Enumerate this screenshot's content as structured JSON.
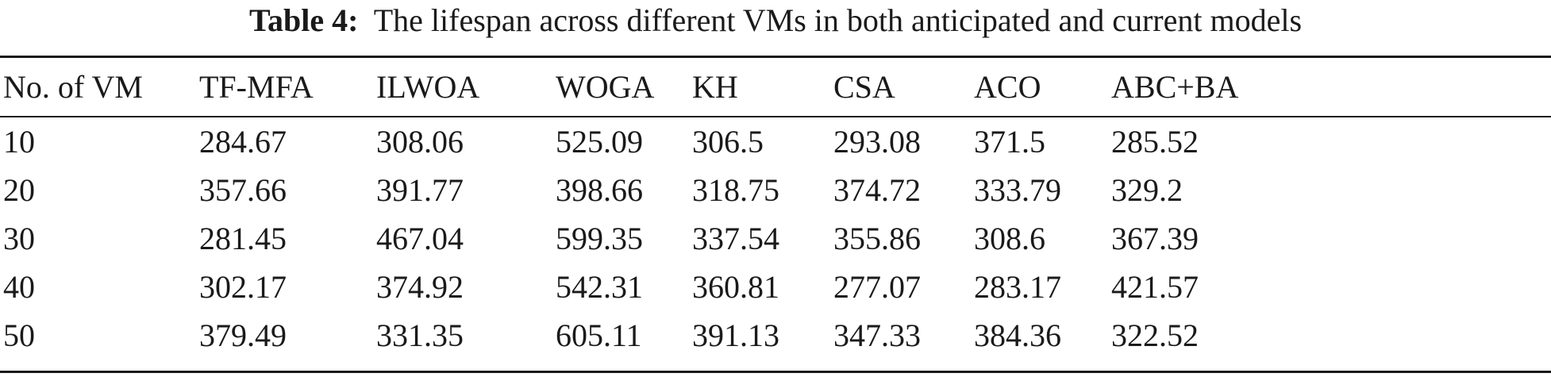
{
  "caption": {
    "label": "Table 4:",
    "text": "The lifespan across different VMs in both anticipated and current models"
  },
  "table": {
    "columns": [
      "No. of VM",
      "TF-MFA",
      "ILWOA",
      "WOGA",
      "KH",
      "CSA",
      "ACO",
      "ABC+BA"
    ],
    "rows": [
      [
        "10",
        "284.67",
        "308.06",
        "525.09",
        "306.5",
        "293.08",
        "371.5",
        "285.52"
      ],
      [
        "20",
        "357.66",
        "391.77",
        "398.66",
        "318.75",
        "374.72",
        "333.79",
        "329.2"
      ],
      [
        "30",
        "281.45",
        "467.04",
        "599.35",
        "337.54",
        "355.86",
        "308.6",
        "367.39"
      ],
      [
        "40",
        "302.17",
        "374.92",
        "542.31",
        "360.81",
        "277.07",
        "283.17",
        "421.57"
      ],
      [
        "50",
        "379.49",
        "331.35",
        "605.11",
        "391.13",
        "347.33",
        "384.36",
        "322.52"
      ]
    ]
  }
}
